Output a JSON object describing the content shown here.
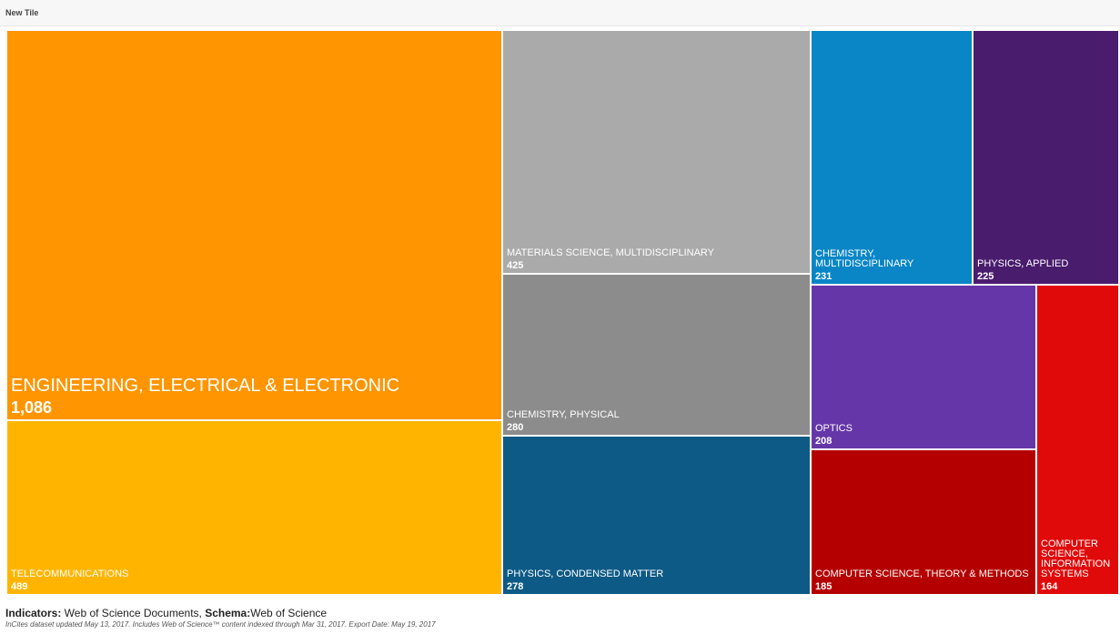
{
  "tile": {
    "title": "New Tile"
  },
  "chart_data": {
    "type": "treemap",
    "items": [
      {
        "label": "ENGINEERING, ELECTRICAL & ELECTRONIC",
        "value": 1086,
        "display": "1,086",
        "color": "#ff9500"
      },
      {
        "label": "TELECOMMUNICATIONS",
        "value": 489,
        "display": "489",
        "color": "#ffb500"
      },
      {
        "label": "MATERIALS SCIENCE, MULTIDISCIPLINARY",
        "value": 425,
        "display": "425",
        "color": "#aaaaaa"
      },
      {
        "label": "CHEMISTRY, PHYSICAL",
        "value": 280,
        "display": "280",
        "color": "#8c8c8c"
      },
      {
        "label": "PHYSICS, CONDENSED MATTER",
        "value": 278,
        "display": "278",
        "color": "#0e5a86"
      },
      {
        "label": "CHEMISTRY, MULTIDISCIPLINARY",
        "value": 231,
        "display": "231",
        "color": "#0a86c7"
      },
      {
        "label": "PHYSICS, APPLIED",
        "value": 225,
        "display": "225",
        "color": "#4a1c6e"
      },
      {
        "label": "OPTICS",
        "value": 208,
        "display": "208",
        "color": "#6536a8"
      },
      {
        "label": "COMPUTER SCIENCE, THEORY & METHODS",
        "value": 185,
        "display": "185",
        "color": "#b50000"
      },
      {
        "label": "COMPUTER SCIENCE, INFORMATION SYSTEMS",
        "value": 164,
        "display": "164",
        "color": "#e10a0a"
      }
    ]
  },
  "footer": {
    "indicators_label": "Indicators:",
    "indicators_value": " Web of Science Documents, ",
    "schema_label": "Schema:",
    "schema_value": "Web of Science",
    "note": "InCites dataset updated May 13, 2017. Includes Web of Science™ content indexed through Mar 31, 2017. Export Date: May 19, 2017"
  }
}
